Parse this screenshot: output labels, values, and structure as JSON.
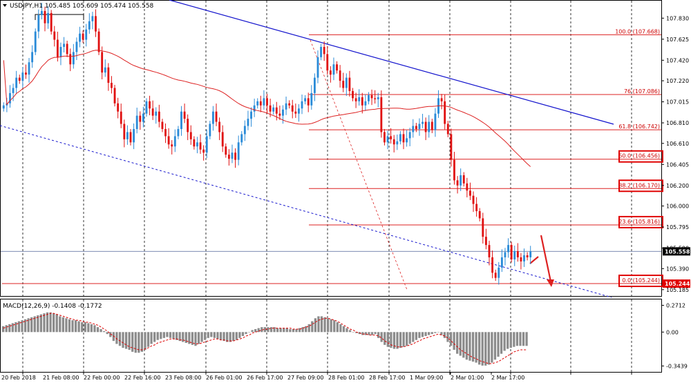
{
  "header": {
    "label": "USDJPY,H1  105.485 105.609 105.474 105.558"
  },
  "colors": {
    "bull": "#2a8bd8",
    "bear": "#e01010",
    "ma": "#dd2020",
    "trend": "#1010cc",
    "fib": "#dd2020",
    "macd_hist": "#8c8c8c",
    "macd_signal": "#dd0000"
  },
  "icons": [
    "dropdown-triangle-icon",
    "arrow-down-icon"
  ],
  "chart_data": {
    "type": "candlestick",
    "symbol": "USDJPY",
    "timeframe": "H1",
    "ohlc_header": {
      "open": 105.485,
      "high": 105.609,
      "low": 105.474,
      "close": 105.558
    },
    "y_ticks": [
      "107.830",
      "107.625",
      "107.420",
      "107.220",
      "107.015",
      "106.810",
      "106.610",
      "106.405",
      "106.200",
      "106.000",
      "105.795",
      "105.590",
      "105.390",
      "105.185"
    ],
    "x_ticks": [
      "20 Feb 2018",
      "21 Feb 08:00",
      "22 Feb 00:00",
      "22 Feb 16:00",
      "23 Feb 08:00",
      "26 Feb 01:00",
      "26 Feb 17:00",
      "27 Feb 09:00",
      "28 Feb 01:00",
      "28 Feb 17:00",
      "1 Mar 09:00",
      "2 Mar 01:00",
      "2 Mar 17:00"
    ],
    "price_range": [
      105.13,
      107.98
    ],
    "current_price": {
      "value": 105.558,
      "label": "105.558"
    },
    "fibonacci": [
      {
        "level": "100.0",
        "price": 107.668,
        "label": "100.0 (107.668)",
        "boxed": false
      },
      {
        "level": "76",
        "price": 107.086,
        "label": "76  (107.086)",
        "boxed": false
      },
      {
        "level": "61.8",
        "price": 106.742,
        "label": "61.8 (106.742)",
        "boxed": false
      },
      {
        "level": "50.0",
        "price": 106.456,
        "label": "50.0 (106.456)",
        "boxed": true
      },
      {
        "level": "38.2",
        "price": 106.17,
        "label": "38.2 (106.170)",
        "boxed": true
      },
      {
        "level": "23.6",
        "price": 105.816,
        "label": "23.6 (105.816)",
        "boxed": true
      },
      {
        "level": "0.0",
        "price": 105.244,
        "label": "0.0 (105.244)",
        "boxed": true
      }
    ],
    "low_price_tag": {
      "value": 105.244,
      "label": "105.244"
    },
    "candles_closes": [
      106.98,
      107.0,
      107.1,
      107.15,
      107.25,
      107.22,
      107.3,
      107.28,
      107.4,
      107.5,
      107.7,
      107.86,
      107.9,
      107.78,
      107.88,
      107.7,
      107.62,
      107.45,
      107.55,
      107.58,
      107.48,
      107.38,
      107.5,
      107.6,
      107.68,
      107.62,
      107.72,
      107.8,
      107.85,
      107.7,
      107.5,
      107.3,
      107.35,
      107.2,
      107.15,
      107.0,
      106.92,
      106.8,
      106.65,
      106.72,
      106.62,
      106.75,
      106.88,
      106.82,
      106.9,
      107.02,
      106.95,
      106.88,
      106.92,
      106.82,
      106.75,
      106.68,
      106.6,
      106.58,
      106.68,
      106.75,
      106.92,
      106.85,
      106.72,
      106.65,
      106.58,
      106.62,
      106.55,
      106.52,
      106.68,
      106.8,
      106.92,
      106.82,
      106.72,
      106.58,
      106.5,
      106.46,
      106.52,
      106.45,
      106.62,
      106.7,
      106.78,
      106.85,
      106.92,
      106.98,
      107.02,
      106.98,
      107.05,
      106.98,
      106.92,
      106.96,
      106.9,
      106.88,
      106.94,
      107.0,
      106.98,
      106.92,
      106.9,
      106.95,
      107.02,
      107.05,
      106.98,
      107.1,
      107.25,
      107.45,
      107.55,
      107.48,
      107.32,
      107.28,
      107.38,
      107.32,
      107.22,
      107.15,
      107.25,
      107.12,
      107.05,
      107.02,
      107.06,
      106.98,
      107.02,
      107.08,
      107.05,
      107.04,
      107.06,
      106.72,
      106.62,
      106.68,
      106.65,
      106.6,
      106.63,
      106.7,
      106.62,
      106.66,
      106.72,
      106.78,
      106.75,
      106.8,
      106.82,
      106.72,
      106.82,
      106.74,
      106.9,
      107.05,
      107.02,
      106.8,
      106.7,
      106.45,
      106.25,
      106.2,
      106.3,
      106.22,
      106.15,
      106.1,
      106.02,
      105.95,
      105.88,
      105.7,
      105.62,
      105.5,
      105.35,
      105.3,
      105.4,
      105.5,
      105.55,
      105.62,
      105.48,
      105.56,
      105.5,
      105.46,
      105.52,
      105.5,
      105.558
    ],
    "moving_average": {
      "type": "MA",
      "color": "#dd2020"
    },
    "trendlines": [
      {
        "style": "solid",
        "color": "#1010cc",
        "description": "descending resistance"
      },
      {
        "style": "dotted",
        "color": "#1010cc",
        "description": "descending support"
      }
    ],
    "projection_arrow": {
      "color": "#dd2020",
      "direction": "down",
      "target": 105.244
    },
    "macd": {
      "label": "MACD(12,26,9) -0.1408 -0.1772",
      "y_ticks": [
        "0.2712",
        "0.00",
        "-0.3439"
      ],
      "y_range": [
        -0.39,
        0.31
      ],
      "histogram": [
        0.06,
        0.07,
        0.08,
        0.09,
        0.1,
        0.11,
        0.12,
        0.13,
        0.14,
        0.15,
        0.16,
        0.17,
        0.18,
        0.19,
        0.2,
        0.2,
        0.19,
        0.18,
        0.16,
        0.15,
        0.14,
        0.13,
        0.12,
        0.12,
        0.11,
        0.1,
        0.1,
        0.09,
        0.08,
        0.07,
        0.05,
        0.03,
        0.01,
        -0.02,
        -0.05,
        -0.09,
        -0.12,
        -0.14,
        -0.16,
        -0.17,
        -0.18,
        -0.2,
        -0.21,
        -0.21,
        -0.2,
        -0.18,
        -0.15,
        -0.12,
        -0.1,
        -0.08,
        -0.07,
        -0.06,
        -0.05,
        -0.06,
        -0.07,
        -0.08,
        -0.09,
        -0.1,
        -0.11,
        -0.12,
        -0.13,
        -0.14,
        -0.12,
        -0.1,
        -0.08,
        -0.06,
        -0.05,
        -0.06,
        -0.07,
        -0.08,
        -0.09,
        -0.1,
        -0.1,
        -0.09,
        -0.08,
        -0.06,
        -0.04,
        -0.02,
        0.0,
        0.02,
        0.03,
        0.04,
        0.05,
        0.05,
        0.05,
        0.05,
        0.05,
        0.04,
        0.04,
        0.04,
        0.04,
        0.03,
        0.03,
        0.03,
        0.04,
        0.05,
        0.06,
        0.08,
        0.11,
        0.14,
        0.16,
        0.16,
        0.15,
        0.14,
        0.13,
        0.12,
        0.1,
        0.08,
        0.06,
        0.04,
        0.02,
        0.0,
        -0.01,
        -0.02,
        -0.03,
        -0.03,
        -0.03,
        -0.03,
        -0.02,
        -0.06,
        -0.1,
        -0.13,
        -0.15,
        -0.16,
        -0.17,
        -0.17,
        -0.16,
        -0.15,
        -0.14,
        -0.12,
        -0.1,
        -0.08,
        -0.06,
        -0.05,
        -0.04,
        -0.03,
        -0.02,
        -0.01,
        0.0,
        -0.03,
        -0.06,
        -0.1,
        -0.14,
        -0.18,
        -0.22,
        -0.24,
        -0.26,
        -0.28,
        -0.29,
        -0.3,
        -0.31,
        -0.33,
        -0.34,
        -0.34,
        -0.33,
        -0.31,
        -0.28,
        -0.25,
        -0.22,
        -0.19,
        -0.17,
        -0.16,
        -0.15,
        -0.14,
        -0.14,
        -0.14,
        -0.14
      ],
      "signal": [
        0.04,
        0.05,
        0.06,
        0.07,
        0.08,
        0.09,
        0.1,
        0.11,
        0.12,
        0.13,
        0.14,
        0.15,
        0.16,
        0.17,
        0.18,
        0.19,
        0.19,
        0.18,
        0.17,
        0.16,
        0.15,
        0.14,
        0.13,
        0.12,
        0.12,
        0.11,
        0.1,
        0.1,
        0.09,
        0.08,
        0.07,
        0.05,
        0.03,
        0.01,
        -0.02,
        -0.04,
        -0.07,
        -0.09,
        -0.11,
        -0.13,
        -0.15,
        -0.16,
        -0.17,
        -0.18,
        -0.18,
        -0.17,
        -0.16,
        -0.14,
        -0.13,
        -0.11,
        -0.1,
        -0.09,
        -0.08,
        -0.07,
        -0.07,
        -0.07,
        -0.08,
        -0.08,
        -0.09,
        -0.1,
        -0.11,
        -0.12,
        -0.12,
        -0.11,
        -0.1,
        -0.09,
        -0.08,
        -0.07,
        -0.07,
        -0.08,
        -0.08,
        -0.09,
        -0.09,
        -0.09,
        -0.08,
        -0.07,
        -0.06,
        -0.04,
        -0.03,
        -0.01,
        0.0,
        0.01,
        0.02,
        0.03,
        0.03,
        0.04,
        0.04,
        0.04,
        0.04,
        0.04,
        0.04,
        0.04,
        0.03,
        0.03,
        0.03,
        0.04,
        0.05,
        0.06,
        0.08,
        0.1,
        0.12,
        0.13,
        0.14,
        0.14,
        0.13,
        0.12,
        0.11,
        0.09,
        0.07,
        0.05,
        0.03,
        0.02,
        0.0,
        -0.01,
        -0.02,
        -0.02,
        -0.03,
        -0.03,
        -0.03,
        -0.04,
        -0.06,
        -0.09,
        -0.11,
        -0.13,
        -0.14,
        -0.15,
        -0.15,
        -0.15,
        -0.14,
        -0.13,
        -0.12,
        -0.1,
        -0.09,
        -0.07,
        -0.06,
        -0.05,
        -0.04,
        -0.03,
        -0.02,
        -0.03,
        -0.04,
        -0.06,
        -0.09,
        -0.12,
        -0.15,
        -0.18,
        -0.2,
        -0.22,
        -0.24,
        -0.26,
        -0.27,
        -0.29,
        -0.3,
        -0.31,
        -0.32,
        -0.32,
        -0.31,
        -0.3,
        -0.28,
        -0.26,
        -0.24,
        -0.22,
        -0.2,
        -0.19,
        -0.18,
        -0.18,
        -0.18
      ]
    }
  }
}
